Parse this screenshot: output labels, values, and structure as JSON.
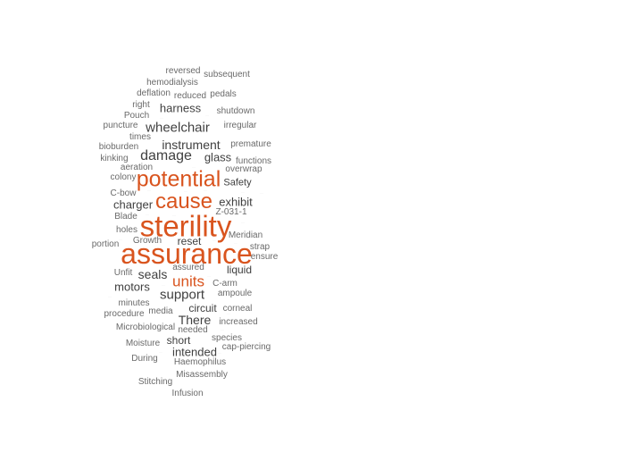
{
  "colors": {
    "accent": "#d9541e",
    "text": "#404040",
    "muted": "#6a6a6a",
    "tiny": "#b3b3b3"
  },
  "words": {
    "sterility": "sterility",
    "assurance": "assurance",
    "potential": "potential",
    "cause": "cause",
    "units": "units",
    "damage": "damage",
    "wheelchair": "wheelchair",
    "instrument": "instrument",
    "support": "support",
    "seals": "seals",
    "there": "There",
    "harness": "harness",
    "glass": "glass",
    "charger": "charger",
    "exhibit": "exhibit",
    "motors": "motors",
    "intended": "intended",
    "short": "short",
    "circuit": "circuit",
    "liquid": "liquid",
    "reset": "reset",
    "safety": "Safety",
    "reversed": "reversed",
    "subsequent": "subsequent",
    "hemodialysis": "hemodialysis",
    "deflation": "deflation",
    "reduced": "reduced",
    "pedals": "pedals",
    "right": "right",
    "shutdown": "shutdown",
    "pouch": "Pouch",
    "puncture": "puncture",
    "irregular": "irregular",
    "times": "times",
    "premature": "premature",
    "bioburden": "bioburden",
    "kinking": "kinking",
    "functions": "functions",
    "aeration": "aeration",
    "overwrap": "overwrap",
    "colony": "colony",
    "cbow": "C-bow",
    "z031": "Z-031-1",
    "blade": "Blade",
    "holes": "holes",
    "meridian": "Meridian",
    "portion": "portion",
    "growth": "Growth",
    "strap": "strap",
    "ensure": "ensure",
    "assured": "assured",
    "unfit": "Unfit",
    "carm": "C-arm",
    "ampoule": "ampoule",
    "minutes": "minutes",
    "corneal": "corneal",
    "procedure": "procedure",
    "media": "media",
    "increased": "increased",
    "microbiological": "Microbiological",
    "needed": "needed",
    "species": "species",
    "moisture": "Moisture",
    "cappiercing": "cap-piercing",
    "during": "During",
    "haemophilus": "Haemophilus",
    "misassembly": "Misassembly",
    "stitching": "Stitching",
    "infusion": "Infusion"
  }
}
